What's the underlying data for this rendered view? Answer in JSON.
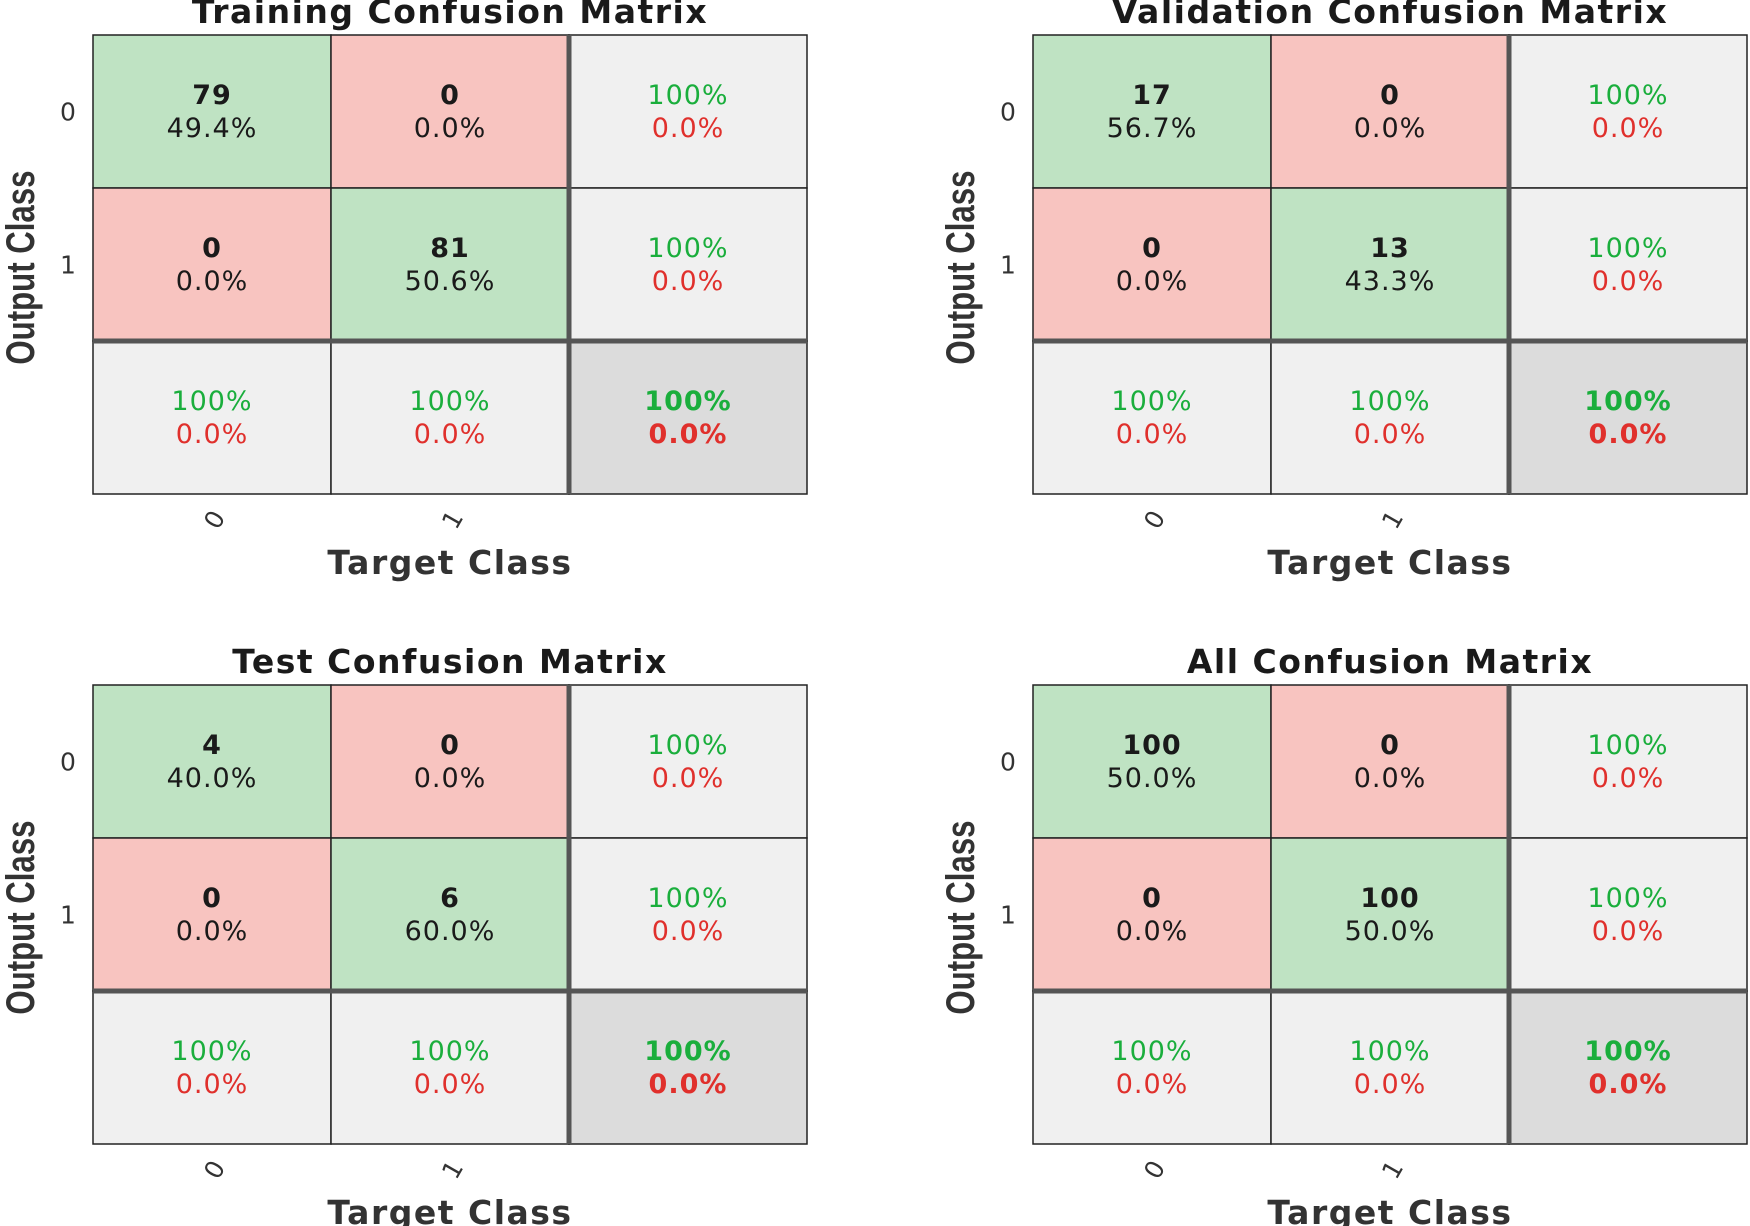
{
  "colors": {
    "correct_fill": "#bfe3c3",
    "wrong_fill": "#f8c4c0",
    "summary_fill": "#f0f0f0",
    "total_fill": "#dcdcdc",
    "green_text": "#1aae3c",
    "red_text": "#e0302c",
    "cell_border": "#222222",
    "separator": "#555555"
  },
  "chart_data": [
    {
      "type": "heatmap",
      "title": "Training Confusion Matrix",
      "xlabel": "Target Class",
      "ylabel": "Output Class",
      "x_ticks": [
        "0",
        "1"
      ],
      "y_ticks": [
        "0",
        "1"
      ],
      "cells": [
        [
          {
            "count": "79",
            "pct": "49.4%"
          },
          {
            "count": "0",
            "pct": "0.0%"
          }
        ],
        [
          {
            "count": "0",
            "pct": "0.0%"
          },
          {
            "count": "81",
            "pct": "50.6%"
          }
        ]
      ],
      "row_summary": [
        {
          "correct": "100%",
          "wrong": "0.0%"
        },
        {
          "correct": "100%",
          "wrong": "0.0%"
        }
      ],
      "col_summary": [
        {
          "correct": "100%",
          "wrong": "0.0%"
        },
        {
          "correct": "100%",
          "wrong": "0.0%"
        }
      ],
      "total": {
        "correct": "100%",
        "wrong": "0.0%"
      }
    },
    {
      "type": "heatmap",
      "title": "Validation Confusion Matrix",
      "xlabel": "Target Class",
      "ylabel": "Output Class",
      "x_ticks": [
        "0",
        "1"
      ],
      "y_ticks": [
        "0",
        "1"
      ],
      "cells": [
        [
          {
            "count": "17",
            "pct": "56.7%"
          },
          {
            "count": "0",
            "pct": "0.0%"
          }
        ],
        [
          {
            "count": "0",
            "pct": "0.0%"
          },
          {
            "count": "13",
            "pct": "43.3%"
          }
        ]
      ],
      "row_summary": [
        {
          "correct": "100%",
          "wrong": "0.0%"
        },
        {
          "correct": "100%",
          "wrong": "0.0%"
        }
      ],
      "col_summary": [
        {
          "correct": "100%",
          "wrong": "0.0%"
        },
        {
          "correct": "100%",
          "wrong": "0.0%"
        }
      ],
      "total": {
        "correct": "100%",
        "wrong": "0.0%"
      }
    },
    {
      "type": "heatmap",
      "title": "Test Confusion Matrix",
      "xlabel": "Target Class",
      "ylabel": "Output Class",
      "x_ticks": [
        "0",
        "1"
      ],
      "y_ticks": [
        "0",
        "1"
      ],
      "cells": [
        [
          {
            "count": "4",
            "pct": "40.0%"
          },
          {
            "count": "0",
            "pct": "0.0%"
          }
        ],
        [
          {
            "count": "0",
            "pct": "0.0%"
          },
          {
            "count": "6",
            "pct": "60.0%"
          }
        ]
      ],
      "row_summary": [
        {
          "correct": "100%",
          "wrong": "0.0%"
        },
        {
          "correct": "100%",
          "wrong": "0.0%"
        }
      ],
      "col_summary": [
        {
          "correct": "100%",
          "wrong": "0.0%"
        },
        {
          "correct": "100%",
          "wrong": "0.0%"
        }
      ],
      "total": {
        "correct": "100%",
        "wrong": "0.0%"
      }
    },
    {
      "type": "heatmap",
      "title": "All Confusion Matrix",
      "xlabel": "Target Class",
      "ylabel": "Output Class",
      "x_ticks": [
        "0",
        "1"
      ],
      "y_ticks": [
        "0",
        "1"
      ],
      "cells": [
        [
          {
            "count": "100",
            "pct": "50.0%"
          },
          {
            "count": "0",
            "pct": "0.0%"
          }
        ],
        [
          {
            "count": "0",
            "pct": "0.0%"
          },
          {
            "count": "100",
            "pct": "50.0%"
          }
        ]
      ],
      "row_summary": [
        {
          "correct": "100%",
          "wrong": "0.0%"
        },
        {
          "correct": "100%",
          "wrong": "0.0%"
        }
      ],
      "col_summary": [
        {
          "correct": "100%",
          "wrong": "0.0%"
        },
        {
          "correct": "100%",
          "wrong": "0.0%"
        }
      ],
      "total": {
        "correct": "100%",
        "wrong": "0.0%"
      }
    }
  ]
}
